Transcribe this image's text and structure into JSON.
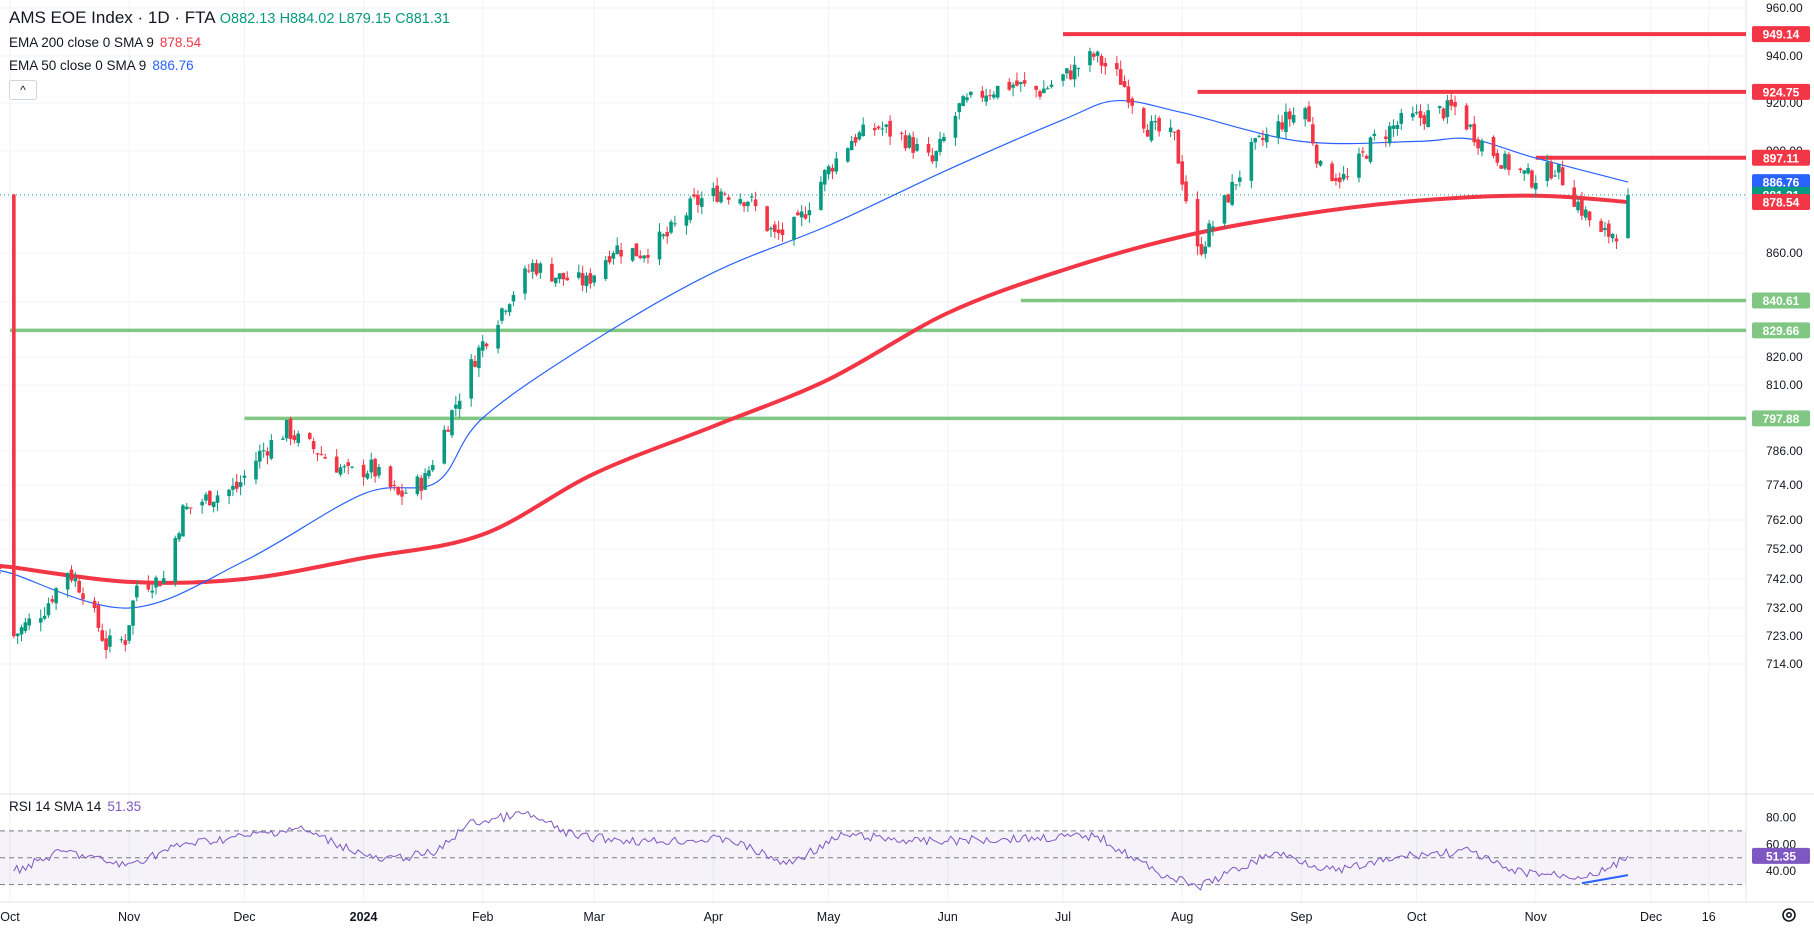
{
  "header": {
    "symbol": "AMS EOE Index · 1D · FTA",
    "ohlc": {
      "o": "O882.13",
      "h": "H884.02",
      "l": "L879.15",
      "c": "C881.31"
    },
    "ema200": {
      "label": "EMA 200 close 0 SMA 9",
      "value": "878.54"
    },
    "ema50": {
      "label": "EMA 50 close 0 SMA 9",
      "value": "886.76"
    },
    "collapse_glyph": "^"
  },
  "rsi": {
    "label": "RSI 14 SMA 14",
    "value": "51.35",
    "axis_ticks": [
      "80.00",
      "60.00",
      "40.00"
    ],
    "badge": "51.35"
  },
  "colors": {
    "up": "#089981",
    "down": "#f23645",
    "ema200": "#f23645",
    "ema50": "#2962ff",
    "resistance": "#f23645",
    "support": "#81c784",
    "rsi": "#7e57c2"
  },
  "chart_data": {
    "type": "candlestick",
    "price_axis_ticks": [
      "960.00",
      "940.00",
      "920.00",
      "900.00",
      "880.00",
      "860.00",
      "840.00",
      "820.00",
      "810.00",
      "786.00",
      "774.00",
      "762.00",
      "752.00",
      "742.00",
      "732.00",
      "723.00",
      "714.00"
    ],
    "x_ticks": [
      "Oct",
      "Nov",
      "Dec",
      "2024",
      "Feb",
      "Mar",
      "Apr",
      "May",
      "Jun",
      "Jul",
      "Aug",
      "Sep",
      "Oct",
      "Nov",
      "Dec",
      "16"
    ],
    "horizontal_levels": [
      {
        "value": 949.14,
        "label": "949.14",
        "kind": "resistance",
        "from": "2024-07-01"
      },
      {
        "value": 924.75,
        "label": "924.75",
        "kind": "resistance",
        "from": "2024-08-05"
      },
      {
        "value": 897.11,
        "label": "897.11",
        "kind": "resistance",
        "from": "2024-11-01"
      },
      {
        "value": 840.61,
        "label": "840.61",
        "kind": "support",
        "from": "2024-06-20"
      },
      {
        "value": 829.66,
        "label": "829.66",
        "kind": "support",
        "from": "2023-10-01"
      },
      {
        "value": 797.88,
        "label": "797.88",
        "kind": "support",
        "from": "2023-12-01"
      }
    ],
    "last_price": {
      "value": 881.31,
      "label": "881.31"
    },
    "ema200_last": {
      "value": 878.54,
      "label": "878.54"
    },
    "ema50_last": {
      "value": 886.76,
      "label": "886.76"
    },
    "close_path": [
      [
        "2023-10-02",
        723
      ],
      [
        "2023-10-10",
        732
      ],
      [
        "2023-10-16",
        745
      ],
      [
        "2023-10-20",
        738
      ],
      [
        "2023-10-26",
        720
      ],
      [
        "2023-10-31",
        722
      ],
      [
        "2023-11-03",
        740
      ],
      [
        "2023-11-10",
        742
      ],
      [
        "2023-11-15",
        765
      ],
      [
        "2023-11-22",
        770
      ],
      [
        "2023-11-29",
        773
      ],
      [
        "2023-12-05",
        785
      ],
      [
        "2023-12-12",
        794
      ],
      [
        "2023-12-15",
        790
      ],
      [
        "2023-12-20",
        786
      ],
      [
        "2023-12-28",
        778
      ],
      [
        "2024-01-03",
        780
      ],
      [
        "2024-01-10",
        770
      ],
      [
        "2024-01-17",
        776
      ],
      [
        "2024-01-24",
        800
      ],
      [
        "2024-01-30",
        820
      ],
      [
        "2024-02-07",
        840
      ],
      [
        "2024-02-14",
        855
      ],
      [
        "2024-02-21",
        850
      ],
      [
        "2024-02-28",
        848
      ],
      [
        "2024-03-06",
        862
      ],
      [
        "2024-03-13",
        860
      ],
      [
        "2024-03-20",
        866
      ],
      [
        "2024-03-27",
        878
      ],
      [
        "2024-04-03",
        883
      ],
      [
        "2024-04-10",
        880
      ],
      [
        "2024-04-17",
        866
      ],
      [
        "2024-04-23",
        870
      ],
      [
        "2024-04-30",
        890
      ],
      [
        "2024-05-07",
        905
      ],
      [
        "2024-05-14",
        910
      ],
      [
        "2024-05-21",
        905
      ],
      [
        "2024-05-28",
        895
      ],
      [
        "2024-06-04",
        918
      ],
      [
        "2024-06-11",
        925
      ],
      [
        "2024-06-18",
        928
      ],
      [
        "2024-06-25",
        925
      ],
      [
        "2024-07-02",
        932
      ],
      [
        "2024-07-09",
        940
      ],
      [
        "2024-07-16",
        930
      ],
      [
        "2024-07-23",
        910
      ],
      [
        "2024-07-30",
        905
      ],
      [
        "2024-08-02",
        880
      ],
      [
        "2024-08-05",
        860
      ],
      [
        "2024-08-12",
        878
      ],
      [
        "2024-08-19",
        900
      ],
      [
        "2024-08-27",
        912
      ],
      [
        "2024-09-02",
        918
      ],
      [
        "2024-09-06",
        892
      ],
      [
        "2024-09-13",
        888
      ],
      [
        "2024-09-20",
        905
      ],
      [
        "2024-09-27",
        912
      ],
      [
        "2024-10-04",
        915
      ],
      [
        "2024-10-11",
        918
      ],
      [
        "2024-10-17",
        905
      ],
      [
        "2024-10-24",
        895
      ],
      [
        "2024-10-31",
        888
      ],
      [
        "2024-11-06",
        893
      ],
      [
        "2024-11-12",
        878
      ],
      [
        "2024-11-18",
        866
      ],
      [
        "2024-11-22",
        868
      ],
      [
        "2024-11-25",
        881.31
      ]
    ],
    "ema200_path": [
      [
        "2023-10-01",
        746
      ],
      [
        "2023-11-01",
        741
      ],
      [
        "2023-12-01",
        742
      ],
      [
        "2024-01-01",
        749
      ],
      [
        "2024-02-01",
        757
      ],
      [
        "2024-03-01",
        778
      ],
      [
        "2024-04-01",
        795
      ],
      [
        "2024-05-01",
        812
      ],
      [
        "2024-06-01",
        836
      ],
      [
        "2024-07-01",
        853
      ],
      [
        "2024-08-01",
        866
      ],
      [
        "2024-09-01",
        874
      ],
      [
        "2024-10-01",
        879
      ],
      [
        "2024-11-01",
        881
      ],
      [
        "2024-11-25",
        878.54
      ]
    ],
    "ema50_path": [
      [
        "2023-10-01",
        744
      ],
      [
        "2023-11-01",
        732
      ],
      [
        "2023-12-01",
        748
      ],
      [
        "2024-01-01",
        771
      ],
      [
        "2024-01-20",
        775
      ],
      [
        "2024-02-01",
        798
      ],
      [
        "2024-03-01",
        826
      ],
      [
        "2024-04-01",
        852
      ],
      [
        "2024-05-01",
        870
      ],
      [
        "2024-06-01",
        892
      ],
      [
        "2024-07-01",
        913
      ],
      [
        "2024-07-15",
        921
      ],
      [
        "2024-08-01",
        916
      ],
      [
        "2024-09-01",
        904
      ],
      [
        "2024-10-01",
        904
      ],
      [
        "2024-10-15",
        905
      ],
      [
        "2024-11-01",
        897
      ],
      [
        "2024-11-25",
        886.76
      ]
    ],
    "rsi_path": [
      [
        "2023-10-02",
        40
      ],
      [
        "2023-10-15",
        55
      ],
      [
        "2023-10-31",
        44
      ],
      [
        "2023-11-15",
        60
      ],
      [
        "2023-12-01",
        66
      ],
      [
        "2023-12-15",
        72
      ],
      [
        "2024-01-05",
        48
      ],
      [
        "2024-01-20",
        54
      ],
      [
        "2024-01-28",
        75
      ],
      [
        "2024-02-12",
        83
      ],
      [
        "2024-02-25",
        66
      ],
      [
        "2024-03-15",
        62
      ],
      [
        "2024-04-05",
        64
      ],
      [
        "2024-04-20",
        45
      ],
      [
        "2024-05-05",
        67
      ],
      [
        "2024-05-25",
        62
      ],
      [
        "2024-06-15",
        64
      ],
      [
        "2024-07-10",
        66
      ],
      [
        "2024-07-25",
        40
      ],
      [
        "2024-08-05",
        28
      ],
      [
        "2024-08-25",
        54
      ],
      [
        "2024-09-10",
        40
      ],
      [
        "2024-09-30",
        52
      ],
      [
        "2024-10-15",
        55
      ],
      [
        "2024-10-25",
        40
      ],
      [
        "2024-11-12",
        36
      ],
      [
        "2024-11-19",
        40
      ],
      [
        "2024-11-25",
        51.35
      ]
    ],
    "rsi_ylim": [
      20,
      90
    ],
    "ylim": [
      705,
      965
    ]
  }
}
